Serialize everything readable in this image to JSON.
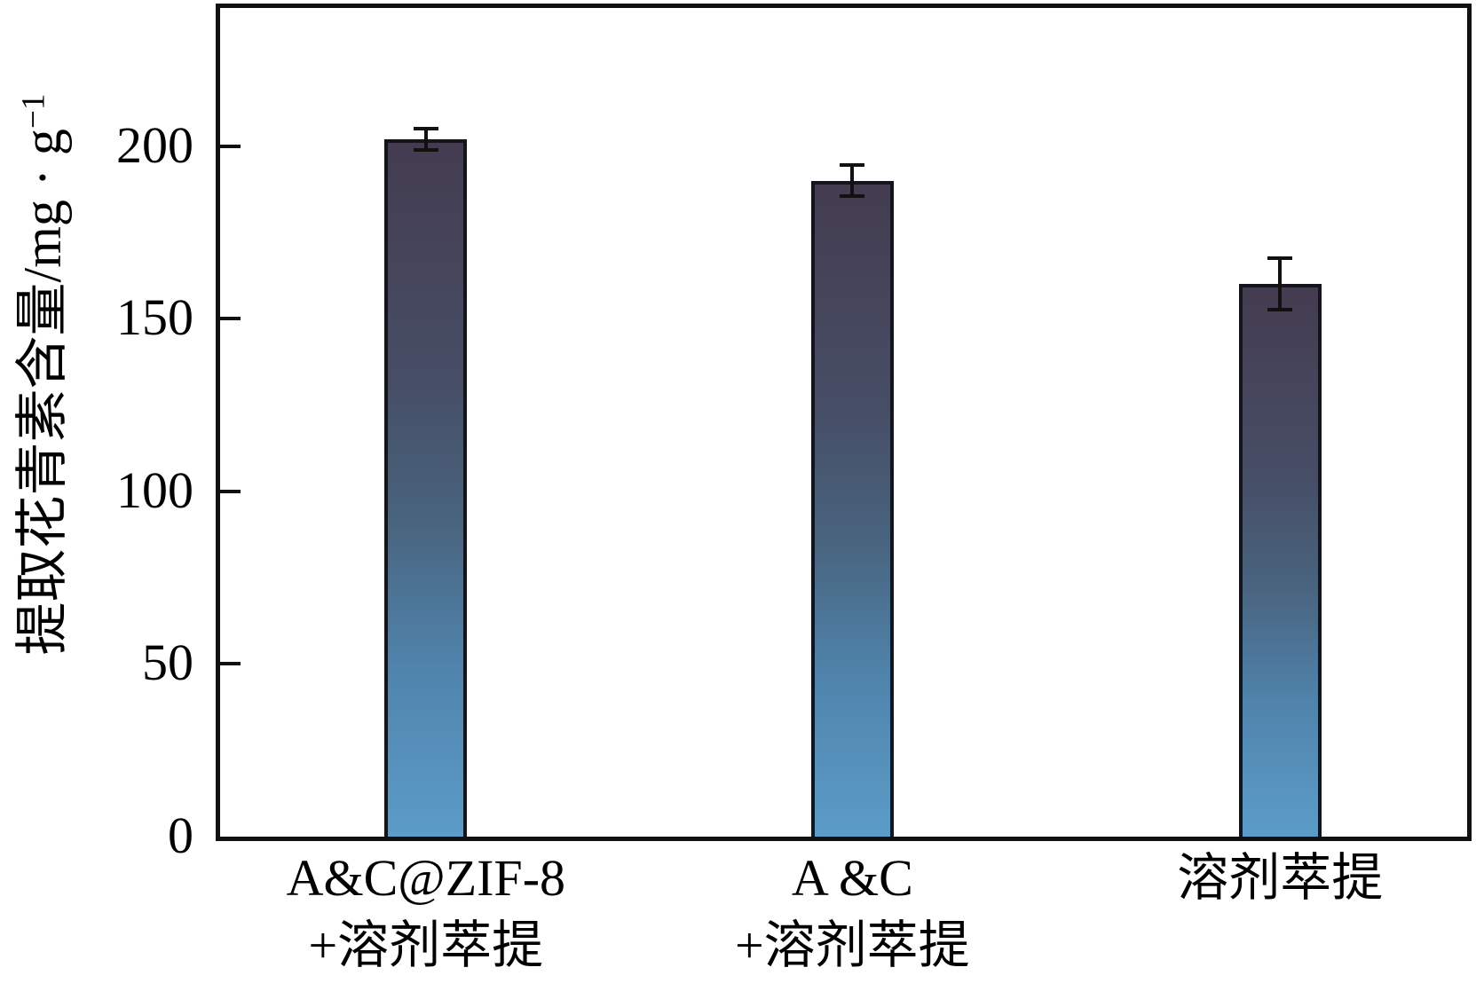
{
  "chart_data": {
    "type": "bar",
    "title": "",
    "xlabel": "",
    "ylabel": "提取花青素含量/mg·g⁻¹",
    "ylabel_main": "提取花青素含量/mg · g",
    "ylabel_sup": "−1",
    "categories": [
      "A&C@ZIF-8 +溶剂萃提",
      "A &C +溶剂萃提",
      "溶剂萃提"
    ],
    "category_lines": [
      [
        "A&C@ZIF-8",
        "+溶剂萃提"
      ],
      [
        "A &C",
        "+溶剂萃提"
      ],
      [
        "溶剂萃提"
      ]
    ],
    "values": [
      202,
      190,
      160
    ],
    "errors": [
      3.5,
      5,
      8
    ],
    "yticks": [
      0,
      50,
      100,
      150,
      200
    ],
    "ylim": [
      0,
      240
    ],
    "grid": false,
    "legend": false,
    "colors": {
      "bar_gradient_top": "#443c50",
      "bar_gradient_upper_mid": "#464e66",
      "bar_gradient_mid": "#49647f",
      "bar_gradient_lower_mid": "#4f83ab",
      "bar_gradient_bottom": "#5b9cc8",
      "bar_border": "#14141c",
      "axis": "#111111",
      "text": "#000000",
      "background": "#ffffff"
    }
  }
}
